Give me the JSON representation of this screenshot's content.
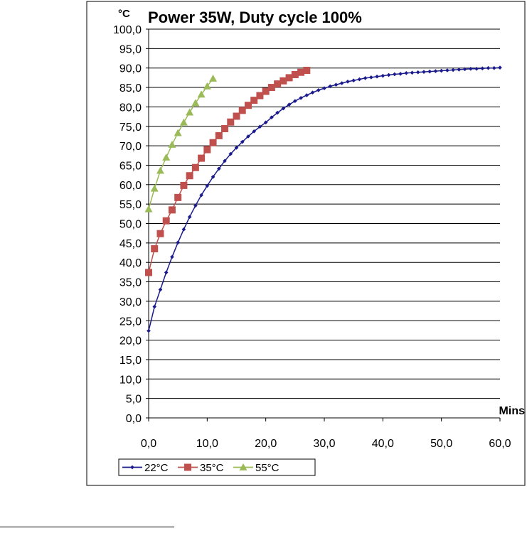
{
  "chart_data": {
    "type": "line",
    "title": "Power 35W, Duty cycle 100%",
    "ylabel": "°C",
    "xlabel": "Mins",
    "xlim": [
      0,
      60
    ],
    "ylim": [
      0,
      100
    ],
    "x_ticks": [
      "0,0",
      "10,0",
      "20,0",
      "30,0",
      "40,0",
      "50,0",
      "60,0"
    ],
    "y_ticks": [
      "0,0",
      "5,0",
      "10,0",
      "15,0",
      "20,0",
      "25,0",
      "30,0",
      "35,0",
      "40,0",
      "45,0",
      "50,0",
      "55,0",
      "60,0",
      "65,0",
      "70,0",
      "75,0",
      "80,0",
      "85,0",
      "90,0",
      "95,0",
      "100,0"
    ],
    "grid": "horizontal",
    "legend_position": "bottom",
    "series": [
      {
        "name": "22°C",
        "color": "#1a1a8c",
        "marker": "diamond",
        "x": [
          0,
          1,
          2,
          3,
          4,
          5,
          6,
          7,
          8,
          9,
          10,
          11,
          12,
          13,
          14,
          15,
          16,
          17,
          18,
          19,
          20,
          21,
          22,
          23,
          24,
          25,
          26,
          27,
          28,
          29,
          30,
          31,
          32,
          33,
          34,
          35,
          36,
          37,
          38,
          39,
          40,
          41,
          42,
          43,
          44,
          45,
          46,
          47,
          48,
          49,
          50,
          51,
          52,
          53,
          54,
          55,
          56,
          57,
          58,
          59,
          60
        ],
        "values": [
          22.4,
          28.6,
          33.0,
          37.4,
          41.4,
          45.1,
          48.5,
          51.7,
          54.6,
          57.3,
          59.7,
          62.0,
          64.1,
          66.1,
          67.9,
          69.5,
          71.0,
          72.4,
          73.7,
          74.9,
          76.0,
          77.3,
          78.5,
          79.6,
          80.6,
          81.5,
          82.3,
          83.0,
          83.7,
          84.3,
          84.8,
          85.3,
          85.7,
          86.1,
          86.5,
          86.8,
          87.1,
          87.4,
          87.6,
          87.8,
          88.0,
          88.2,
          88.4,
          88.5,
          88.7,
          88.8,
          88.9,
          89.0,
          89.1,
          89.2,
          89.3,
          89.4,
          89.5,
          89.6,
          89.7,
          89.8,
          89.8,
          89.9,
          90.0,
          90.0,
          90.1
        ]
      },
      {
        "name": "35°C",
        "color": "#c0504d",
        "marker": "square",
        "x": [
          0,
          1,
          2,
          3,
          4,
          5,
          6,
          7,
          8,
          9,
          10,
          11,
          12,
          13,
          14,
          15,
          16,
          17,
          18,
          19,
          20,
          21,
          22,
          23,
          24,
          25,
          26,
          27
        ],
        "values": [
          37.4,
          43.5,
          47.4,
          50.7,
          53.5,
          56.7,
          59.8,
          62.3,
          64.4,
          66.8,
          69.0,
          70.8,
          72.6,
          74.4,
          76.1,
          77.6,
          79.1,
          80.4,
          81.7,
          82.9,
          84.0,
          85.0,
          85.9,
          86.7,
          87.5,
          88.3,
          88.9,
          89.4
        ]
      },
      {
        "name": "55°C",
        "color": "#9bbb59",
        "marker": "triangle",
        "x": [
          0,
          1,
          2,
          3,
          4,
          5,
          6,
          7,
          8,
          9,
          10,
          11
        ],
        "values": [
          53.7,
          59.0,
          63.6,
          67.0,
          70.3,
          73.3,
          76.0,
          78.6,
          81.0,
          83.2,
          85.3,
          87.3
        ]
      }
    ]
  }
}
